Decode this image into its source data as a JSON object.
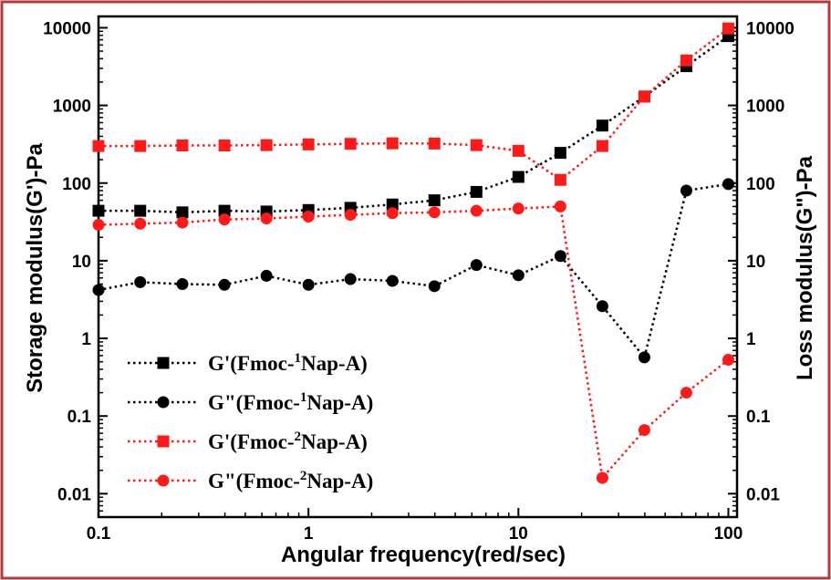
{
  "chart_data": {
    "type": "line",
    "title": "",
    "xlabel": "Angular frequency(red/sec)",
    "ylabel": "Storage modulus(G')-Pa",
    "ylabel_right": "Loss modulus(G\")-Pa",
    "xscale": "log",
    "yscale": "log",
    "xlim": [
      0.1,
      110
    ],
    "ylim": [
      0.005,
      14000
    ],
    "x_ticks": [
      "0.1",
      "1",
      "10",
      "100"
    ],
    "y_ticks": [
      "0.01",
      "0.1",
      "1",
      "10",
      "100",
      "1000",
      "10000"
    ],
    "grid": false,
    "legend_position": "bottom-left",
    "x": [
      0.1,
      0.158,
      0.251,
      0.398,
      0.631,
      1.0,
      1.585,
      2.512,
      3.981,
      6.31,
      10.0,
      15.85,
      25.12,
      39.81,
      63.1,
      100.0
    ],
    "series": [
      {
        "name": "G'(Fmoc-1Nap-A)",
        "label_base": "G'(Fmoc-",
        "label_sup": "1",
        "label_rest": "Nap-A)",
        "color": "#000000",
        "marker": "square",
        "values": [
          44,
          44,
          42,
          44,
          43,
          45,
          48,
          53,
          60,
          77,
          120,
          245,
          550,
          1300,
          3200,
          7800
        ]
      },
      {
        "name": "G\"(Fmoc-1Nap-A)",
        "label_base": "G\"(Fmoc-",
        "label_sup": "1",
        "label_rest": "Nap-A)",
        "color": "#000000",
        "marker": "circle",
        "values": [
          4.2,
          5.3,
          5.0,
          4.9,
          6.4,
          4.9,
          5.8,
          5.5,
          4.7,
          8.8,
          6.5,
          11.5,
          2.6,
          0.57,
          80,
          97
        ]
      },
      {
        "name": "G'(Fmoc-2Nap-A)",
        "label_base": "G'(Fmoc-",
        "label_sup": "2",
        "label_rest": "Nap-A)",
        "color": "#ff1a1a",
        "marker": "square",
        "values": [
          300,
          300,
          305,
          305,
          308,
          315,
          320,
          325,
          323,
          308,
          260,
          110,
          300,
          1300,
          3800,
          9800
        ]
      },
      {
        "name": "G\"(Fmoc-2Nap-A)",
        "label_base": "G\"(Fmoc-",
        "label_sup": "2",
        "label_rest": "Nap-A)",
        "color": "#ff1a1a",
        "marker": "circle",
        "values": [
          29,
          30,
          31,
          34,
          35,
          37,
          39,
          41,
          42,
          44,
          47,
          50,
          0.016,
          0.066,
          0.2,
          0.53
        ]
      }
    ]
  },
  "frame": {
    "border_color": "#b23a3a"
  }
}
